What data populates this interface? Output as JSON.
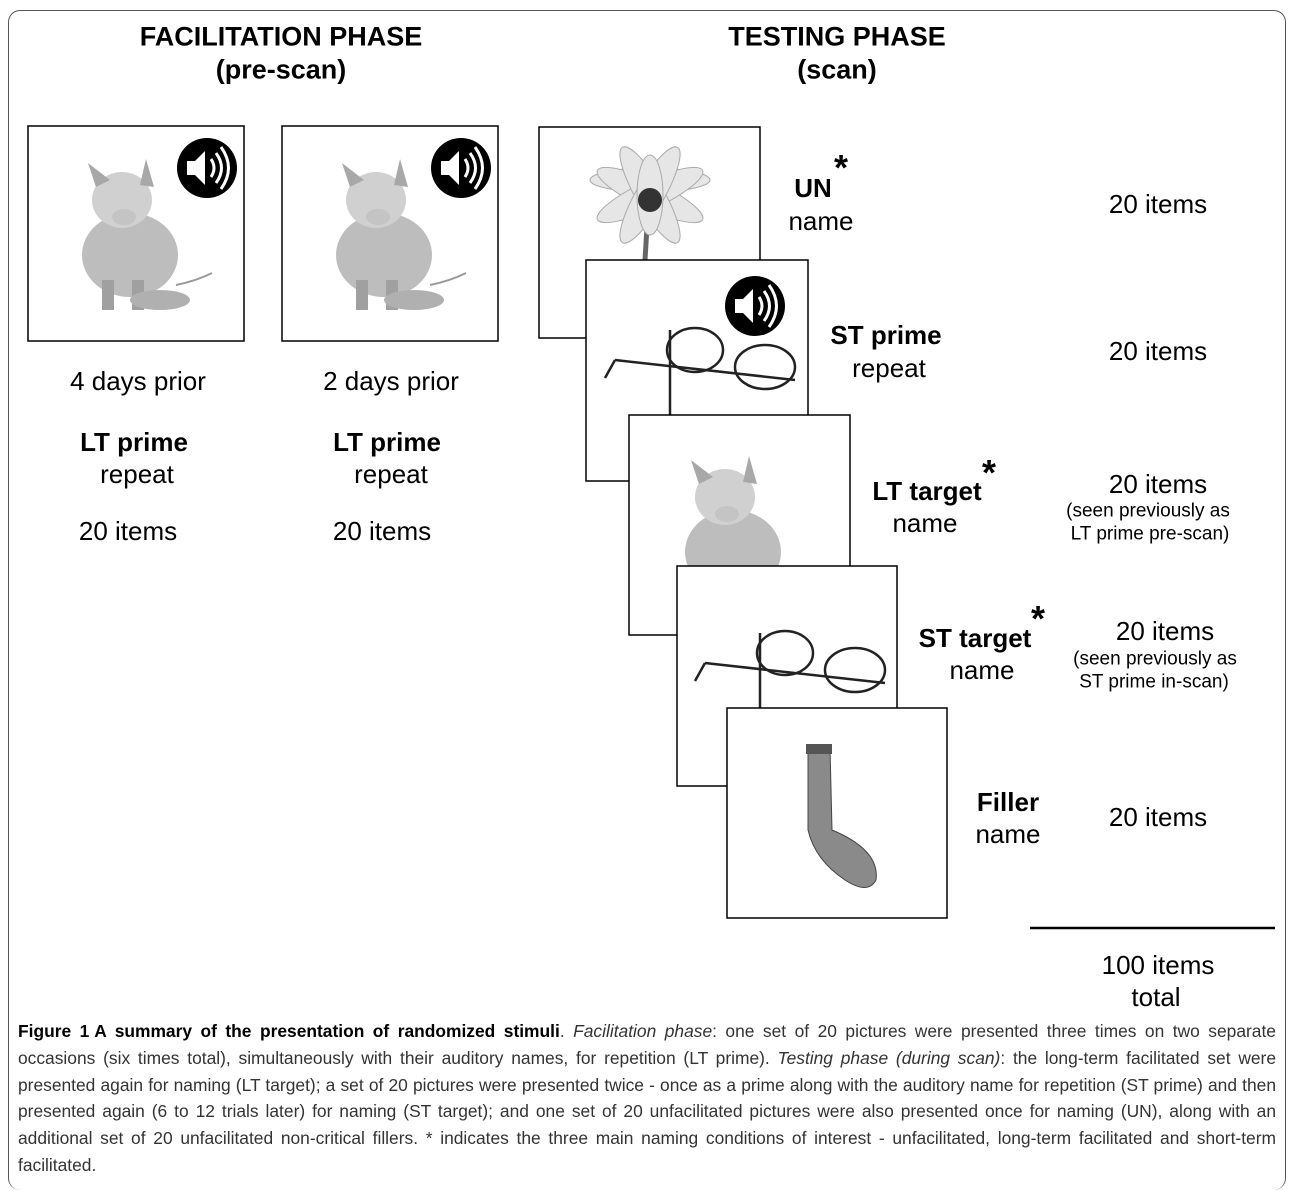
{
  "facilitation": {
    "title": "FACILITATION PHASE",
    "subtitle": "(pre-scan)",
    "sessions": [
      {
        "when": "4 days prior",
        "condition": "LT prime",
        "task": "repeat",
        "count": "20 items"
      },
      {
        "when": "2 days prior",
        "condition": "LT prime",
        "task": "repeat",
        "count": "20 items"
      }
    ]
  },
  "testing": {
    "title": "TESTING PHASE",
    "subtitle": "(scan)",
    "trials": [
      {
        "condition": "UN",
        "asterisk": "*",
        "task": "name",
        "count": "20 items"
      },
      {
        "condition": "ST prime",
        "task": "repeat",
        "count": "20 items"
      },
      {
        "condition": "LT target",
        "asterisk": "*",
        "task": "name",
        "count": "20 items",
        "note": [
          "(seen previously as",
          "LT prime pre-scan)"
        ]
      },
      {
        "condition": "ST target",
        "asterisk": "*",
        "task": "name",
        "count": "20 items",
        "note": [
          "(seen previously as",
          "ST prime in-scan)"
        ]
      },
      {
        "condition": "Filler",
        "task": "name",
        "count": "20 items"
      }
    ],
    "total": [
      "100 items",
      "total"
    ]
  },
  "caption": {
    "parts": [
      "Figure 1",
      "A summary of the presentation of randomized stimuli",
      ". ",
      "Facilitation phase",
      ": one set of 20 pictures were presented three times on two separate occasions (six times total), simultaneously with their auditory names, for repetition (LT prime). ",
      "Testing phase (during scan)",
      ": the long-term facilitated set were presented again for naming (LT target); a set of 20 pictures were presented twice - once as a prime along with the auditory name for repetition (ST prime) and then presented again (6 to 12 trials later) for naming (ST target); and one set of 20 unfacilitated pictures were also presented once for naming (UN), along with an additional set of 20 unfacilitated non-critical fillers. * indicates the three main naming conditions of interest - unfacilitated, long-term facilitated and short-term facilitated."
    ]
  }
}
